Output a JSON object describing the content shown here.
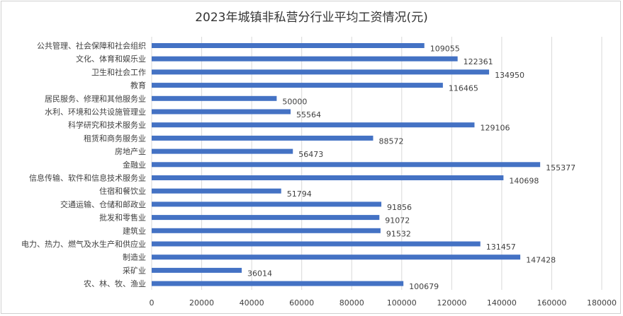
{
  "chart_data": {
    "type": "bar",
    "orientation": "horizontal",
    "title": "2023年城镇非私营分行业平均工资情况(元)",
    "categories": [
      "公共管理、社会保障和社会组织",
      "文化、体育和娱乐业",
      "卫生和社会工作",
      "教育",
      "居民服务、修理和其他服务业",
      "水利、环境和公共设施管理业",
      "科学研究和技术服务业",
      "租赁和商务服务业",
      "房地产业",
      "金融业",
      "信息传输、软件和信息技术服务业",
      "住宿和餐饮业",
      "交通运输、仓储和邮政业",
      "批发和零售业",
      "建筑业",
      "电力、热力、燃气及水生产和供应业",
      "制造业",
      "采矿业",
      "农、林、牧、渔业"
    ],
    "values": [
      109055,
      122361,
      134950,
      116465,
      50000,
      55564,
      129106,
      88572,
      56473,
      155377,
      140698,
      51794,
      91856,
      91072,
      91532,
      131457,
      147428,
      36014,
      100679
    ],
    "xlim": [
      0,
      180000
    ],
    "xticks": [
      "0",
      "20000",
      "40000",
      "60000",
      "80000",
      "100000",
      "120000",
      "140000",
      "160000",
      "180000"
    ],
    "grid": true,
    "bar_color": "#4472c4",
    "grid_color": "#d9d9d9",
    "text_color": "#404040"
  }
}
